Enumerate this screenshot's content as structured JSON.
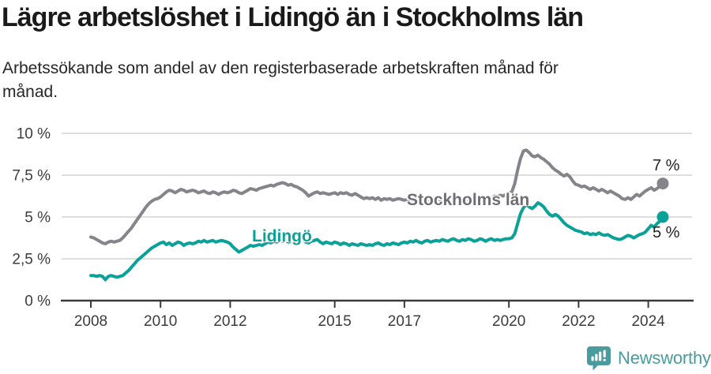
{
  "header": {
    "title": "Lägre arbetslöshet i Lidingö än i Stockholms län",
    "subtitle_line1": "Arbetssökande som andel av den registerbaserade arbetskraften månad för",
    "subtitle_line2": "månad."
  },
  "chart_data": {
    "type": "line",
    "title": "Lägre arbetslöshet i Lidingö än i Stockholms län",
    "subtitle": "Arbetssökande som andel av den registerbaserade arbetskraften månad för månad.",
    "unit": "%",
    "frequency": "monthly",
    "x_start": "2008-01",
    "x_end": "2024-06",
    "ylim": [
      0,
      10
    ],
    "grid": "horizontal",
    "legend_position": "inline-labels",
    "yticks": [
      {
        "v": 0,
        "label": "0 %"
      },
      {
        "v": 2.5,
        "label": "2,5 %"
      },
      {
        "v": 5,
        "label": "5 %"
      },
      {
        "v": 7.5,
        "label": "7,5 %"
      },
      {
        "v": 10,
        "label": "10 %"
      }
    ],
    "xticks": [
      {
        "year": 2008,
        "label": "2008"
      },
      {
        "year": 2010,
        "label": "2010"
      },
      {
        "year": 2012,
        "label": "2012"
      },
      {
        "year": 2015,
        "label": "2015"
      },
      {
        "year": 2017,
        "label": "2017"
      },
      {
        "year": 2020,
        "label": "2020"
      },
      {
        "year": 2022,
        "label": "2022"
      },
      {
        "year": 2024,
        "label": "2024"
      }
    ],
    "series": [
      {
        "name": "Stockholms län",
        "color": "#84858a",
        "end_value_label": "7 %",
        "values": [
          3.8,
          3.75,
          3.65,
          3.55,
          3.45,
          3.4,
          3.5,
          3.55,
          3.5,
          3.55,
          3.6,
          3.75,
          3.95,
          4.15,
          4.35,
          4.6,
          4.85,
          5.1,
          5.35,
          5.6,
          5.8,
          5.95,
          6.05,
          6.1,
          6.2,
          6.35,
          6.5,
          6.6,
          6.55,
          6.45,
          6.55,
          6.65,
          6.6,
          6.5,
          6.55,
          6.6,
          6.55,
          6.45,
          6.5,
          6.55,
          6.45,
          6.4,
          6.5,
          6.45,
          6.35,
          6.45,
          6.5,
          6.45,
          6.5,
          6.6,
          6.55,
          6.45,
          6.4,
          6.5,
          6.6,
          6.7,
          6.65,
          6.6,
          6.7,
          6.75,
          6.8,
          6.85,
          6.9,
          6.85,
          6.95,
          7.0,
          7.05,
          7.0,
          6.9,
          6.95,
          6.85,
          6.8,
          6.7,
          6.6,
          6.45,
          6.25,
          6.35,
          6.45,
          6.5,
          6.4,
          6.45,
          6.4,
          6.35,
          6.4,
          6.45,
          6.35,
          6.45,
          6.4,
          6.45,
          6.35,
          6.3,
          6.4,
          6.3,
          6.2,
          6.1,
          6.15,
          6.1,
          6.15,
          6.05,
          6.15,
          6.0,
          6.1,
          6.05,
          6.1,
          6.0,
          6.05,
          6.1,
          6.05,
          6.0,
          6.05,
          5.95,
          6.05,
          6.1,
          6.0,
          5.95,
          6.05,
          6.0,
          5.9,
          5.95,
          6.0,
          5.9,
          5.85,
          5.95,
          5.9,
          5.8,
          5.9,
          5.95,
          5.85,
          5.9,
          6.0,
          5.95,
          6.05,
          6.0,
          6.1,
          6.05,
          6.15,
          6.1,
          6.2,
          6.15,
          6.25,
          6.2,
          6.3,
          6.25,
          6.35,
          6.4,
          6.5,
          7.0,
          7.8,
          8.5,
          8.95,
          9.0,
          8.85,
          8.65,
          8.6,
          8.7,
          8.55,
          8.45,
          8.3,
          8.15,
          7.95,
          7.8,
          7.7,
          7.55,
          7.45,
          7.55,
          7.4,
          7.15,
          6.95,
          6.9,
          6.8,
          6.85,
          6.75,
          6.65,
          6.75,
          6.65,
          6.55,
          6.65,
          6.55,
          6.45,
          6.55,
          6.45,
          6.35,
          6.25,
          6.1,
          6.05,
          6.15,
          6.05,
          6.2,
          6.35,
          6.25,
          6.4,
          6.55,
          6.65,
          6.75,
          6.6,
          6.7,
          6.85,
          7.0
        ]
      },
      {
        "name": "Lidingö",
        "color": "#0aa199",
        "end_value_label": "5 %",
        "values": [
          1.5,
          1.5,
          1.45,
          1.5,
          1.45,
          1.25,
          1.45,
          1.5,
          1.45,
          1.4,
          1.45,
          1.5,
          1.65,
          1.8,
          2.0,
          2.2,
          2.4,
          2.55,
          2.7,
          2.85,
          3.0,
          3.15,
          3.25,
          3.35,
          3.45,
          3.5,
          3.35,
          3.45,
          3.3,
          3.4,
          3.5,
          3.45,
          3.3,
          3.4,
          3.45,
          3.4,
          3.45,
          3.55,
          3.5,
          3.6,
          3.5,
          3.55,
          3.6,
          3.5,
          3.55,
          3.6,
          3.55,
          3.5,
          3.4,
          3.2,
          3.05,
          2.9,
          3.0,
          3.1,
          3.2,
          3.3,
          3.25,
          3.3,
          3.35,
          3.3,
          3.4,
          3.5,
          3.45,
          3.55,
          3.5,
          3.6,
          3.55,
          3.6,
          3.5,
          3.55,
          3.45,
          3.5,
          3.55,
          3.65,
          3.5,
          3.45,
          3.55,
          3.6,
          3.65,
          3.5,
          3.4,
          3.5,
          3.45,
          3.4,
          3.5,
          3.45,
          3.35,
          3.45,
          3.4,
          3.3,
          3.4,
          3.35,
          3.3,
          3.4,
          3.35,
          3.3,
          3.35,
          3.3,
          3.4,
          3.45,
          3.35,
          3.3,
          3.4,
          3.35,
          3.45,
          3.4,
          3.35,
          3.45,
          3.5,
          3.45,
          3.55,
          3.5,
          3.6,
          3.5,
          3.45,
          3.55,
          3.6,
          3.5,
          3.55,
          3.6,
          3.55,
          3.65,
          3.6,
          3.55,
          3.65,
          3.7,
          3.6,
          3.55,
          3.65,
          3.6,
          3.7,
          3.65,
          3.55,
          3.6,
          3.7,
          3.65,
          3.55,
          3.65,
          3.7,
          3.6,
          3.65,
          3.6,
          3.65,
          3.7,
          3.7,
          3.75,
          4.0,
          4.6,
          5.2,
          5.55,
          5.75,
          5.6,
          5.5,
          5.65,
          5.85,
          5.75,
          5.6,
          5.35,
          5.15,
          5.05,
          5.15,
          5.05,
          4.85,
          4.65,
          4.5,
          4.4,
          4.3,
          4.2,
          4.15,
          4.1,
          4.0,
          4.05,
          3.95,
          4.0,
          3.95,
          4.05,
          3.95,
          3.9,
          3.95,
          3.85,
          3.75,
          3.7,
          3.65,
          3.7,
          3.8,
          3.9,
          3.85,
          3.75,
          3.85,
          3.95,
          4.0,
          4.1,
          4.3,
          4.5,
          4.4,
          4.6,
          4.75,
          5.0
        ]
      }
    ]
  },
  "annotations": {
    "stockholm_label": "Stockholms län",
    "lidingo_label": "Lidingö",
    "stockholm_end_label": "7 %",
    "lidingo_end_label": "5 %"
  },
  "footer": {
    "brand": "Newsworthy"
  },
  "colors": {
    "lidingo": "#0aa199",
    "stockholm_line": "#84858a",
    "stockholm_text": "#6d6e73",
    "grid": "#d9d9d9",
    "axis": "#3a3a3a",
    "tick_text": "#3c3c3c",
    "logo": "#4a9b9e"
  }
}
